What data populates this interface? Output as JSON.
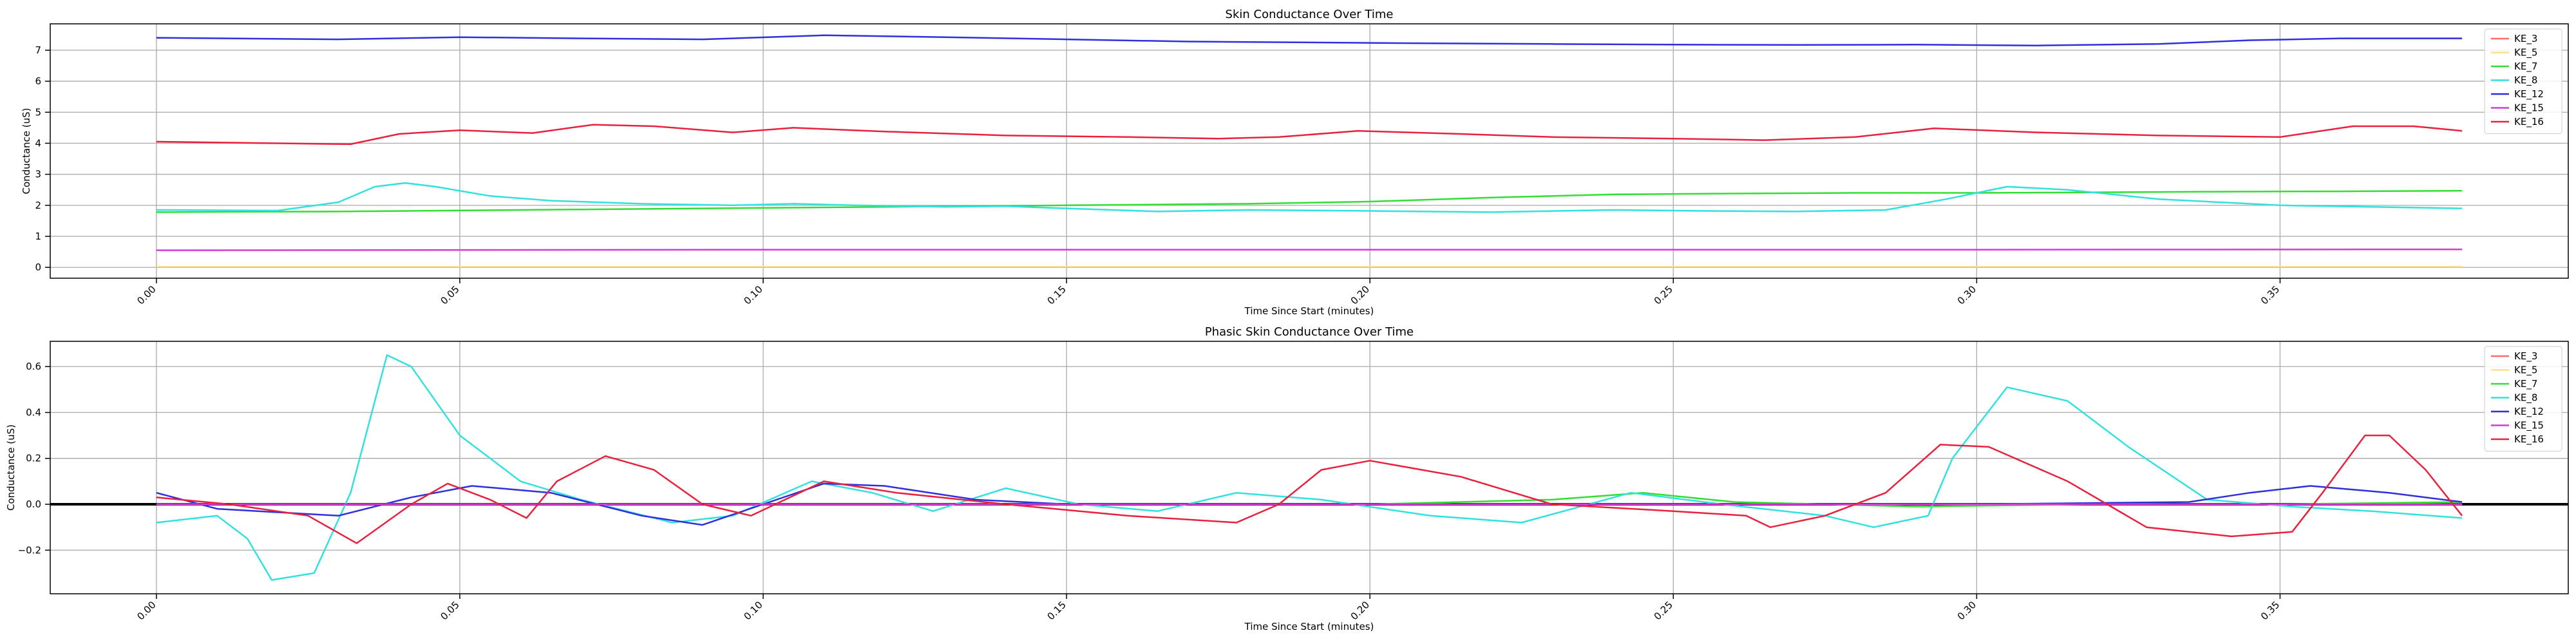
{
  "chart_data": [
    {
      "type": "line",
      "title": "Skin Conductance Over Time",
      "xlabel": "Time Since Start (minutes)",
      "ylabel": "Conductance (uS)",
      "xlim": [
        -0.0175,
        0.3975
      ],
      "ylim": [
        -0.35,
        7.85
      ],
      "xticks": [
        "0.00",
        "0.05",
        "0.10",
        "0.15",
        "0.20",
        "0.25",
        "0.30",
        "0.35"
      ],
      "xtick_values": [
        0.0,
        0.05,
        0.1,
        0.15,
        0.2,
        0.25,
        0.3,
        0.35
      ],
      "yticks": [
        "0",
        "1",
        "2",
        "3",
        "4",
        "5",
        "6",
        "7"
      ],
      "ytick_values": [
        0,
        1,
        2,
        3,
        4,
        5,
        6,
        7
      ],
      "grid": true,
      "legend": "top-right",
      "series": [
        {
          "name": "KE_3",
          "color": "#ff6b6b",
          "points": [
            [
              0.0,
              0.01
            ],
            [
              0.1,
              0.01
            ],
            [
              0.2,
              0.01
            ],
            [
              0.3,
              0.01
            ],
            [
              0.38,
              0.01
            ]
          ]
        },
        {
          "name": "KE_5",
          "color": "#ffe08a",
          "points": [
            [
              0.0,
              0.02
            ],
            [
              0.1,
              0.02
            ],
            [
              0.2,
              0.02
            ],
            [
              0.3,
              0.02
            ],
            [
              0.38,
              0.02
            ]
          ]
        },
        {
          "name": "KE_7",
          "color": "#33dd33",
          "points": [
            [
              0.0,
              1.78
            ],
            [
              0.03,
              1.8
            ],
            [
              0.06,
              1.85
            ],
            [
              0.09,
              1.9
            ],
            [
              0.12,
              1.95
            ],
            [
              0.15,
              2.0
            ],
            [
              0.18,
              2.05
            ],
            [
              0.2,
              2.12
            ],
            [
              0.22,
              2.25
            ],
            [
              0.24,
              2.35
            ],
            [
              0.26,
              2.38
            ],
            [
              0.28,
              2.4
            ],
            [
              0.3,
              2.4
            ],
            [
              0.32,
              2.42
            ],
            [
              0.34,
              2.44
            ],
            [
              0.36,
              2.45
            ],
            [
              0.38,
              2.47
            ]
          ]
        },
        {
          "name": "KE_8",
          "color": "#33e0e0",
          "points": [
            [
              0.0,
              1.85
            ],
            [
              0.02,
              1.83
            ],
            [
              0.03,
              2.1
            ],
            [
              0.036,
              2.6
            ],
            [
              0.041,
              2.72
            ],
            [
              0.046,
              2.6
            ],
            [
              0.055,
              2.3
            ],
            [
              0.065,
              2.15
            ],
            [
              0.08,
              2.05
            ],
            [
              0.095,
              2.0
            ],
            [
              0.105,
              2.05
            ],
            [
              0.115,
              2.0
            ],
            [
              0.13,
              1.95
            ],
            [
              0.14,
              1.97
            ],
            [
              0.15,
              1.9
            ],
            [
              0.165,
              1.8
            ],
            [
              0.18,
              1.85
            ],
            [
              0.2,
              1.82
            ],
            [
              0.22,
              1.78
            ],
            [
              0.24,
              1.85
            ],
            [
              0.255,
              1.82
            ],
            [
              0.27,
              1.8
            ],
            [
              0.285,
              1.85
            ],
            [
              0.295,
              2.2
            ],
            [
              0.305,
              2.6
            ],
            [
              0.315,
              2.5
            ],
            [
              0.33,
              2.2
            ],
            [
              0.35,
              2.0
            ],
            [
              0.365,
              1.95
            ],
            [
              0.38,
              1.9
            ]
          ]
        },
        {
          "name": "KE_12",
          "color": "#2f2fdd",
          "points": [
            [
              0.0,
              7.4
            ],
            [
              0.03,
              7.35
            ],
            [
              0.05,
              7.42
            ],
            [
              0.07,
              7.38
            ],
            [
              0.09,
              7.35
            ],
            [
              0.11,
              7.48
            ],
            [
              0.13,
              7.42
            ],
            [
              0.15,
              7.35
            ],
            [
              0.17,
              7.28
            ],
            [
              0.19,
              7.25
            ],
            [
              0.21,
              7.22
            ],
            [
              0.23,
              7.2
            ],
            [
              0.25,
              7.18
            ],
            [
              0.27,
              7.17
            ],
            [
              0.29,
              7.18
            ],
            [
              0.31,
              7.15
            ],
            [
              0.33,
              7.2
            ],
            [
              0.345,
              7.32
            ],
            [
              0.36,
              7.38
            ],
            [
              0.38,
              7.38
            ]
          ]
        },
        {
          "name": "KE_15",
          "color": "#d43cd4",
          "points": [
            [
              0.0,
              0.55
            ],
            [
              0.1,
              0.57
            ],
            [
              0.2,
              0.57
            ],
            [
              0.3,
              0.57
            ],
            [
              0.38,
              0.58
            ]
          ]
        },
        {
          "name": "KE_16",
          "color": "#e8213e",
          "points": [
            [
              0.0,
              4.05
            ],
            [
              0.02,
              4.0
            ],
            [
              0.032,
              3.97
            ],
            [
              0.04,
              4.3
            ],
            [
              0.05,
              4.42
            ],
            [
              0.062,
              4.33
            ],
            [
              0.072,
              4.6
            ],
            [
              0.082,
              4.55
            ],
            [
              0.095,
              4.35
            ],
            [
              0.105,
              4.5
            ],
            [
              0.12,
              4.38
            ],
            [
              0.14,
              4.25
            ],
            [
              0.16,
              4.2
            ],
            [
              0.175,
              4.15
            ],
            [
              0.185,
              4.2
            ],
            [
              0.198,
              4.4
            ],
            [
              0.215,
              4.3
            ],
            [
              0.23,
              4.2
            ],
            [
              0.25,
              4.15
            ],
            [
              0.265,
              4.1
            ],
            [
              0.28,
              4.2
            ],
            [
              0.293,
              4.48
            ],
            [
              0.31,
              4.35
            ],
            [
              0.33,
              4.25
            ],
            [
              0.35,
              4.2
            ],
            [
              0.362,
              4.55
            ],
            [
              0.372,
              4.55
            ],
            [
              0.38,
              4.4
            ]
          ]
        }
      ]
    },
    {
      "type": "line",
      "title": "Phasic Skin Conductance Over Time",
      "xlabel": "Time Since Start (minutes)",
      "ylabel": "Conductance (uS)",
      "xlim": [
        -0.0175,
        0.3975
      ],
      "ylim": [
        -0.39,
        0.71
      ],
      "xticks": [
        "0.00",
        "0.05",
        "0.10",
        "0.15",
        "0.20",
        "0.25",
        "0.30",
        "0.35"
      ],
      "xtick_values": [
        0.0,
        0.05,
        0.1,
        0.15,
        0.2,
        0.25,
        0.3,
        0.35
      ],
      "yticks": [
        "−0.2",
        "0.0",
        "0.2",
        "0.4",
        "0.6"
      ],
      "ytick_values": [
        -0.2,
        0.0,
        0.2,
        0.4,
        0.6
      ],
      "grid": true,
      "legend": "top-right",
      "zero_line": true,
      "series": [
        {
          "name": "KE_3",
          "color": "#ff6b6b",
          "points": [
            [
              0.0,
              0.0
            ],
            [
              0.38,
              0.0
            ]
          ]
        },
        {
          "name": "KE_5",
          "color": "#ffe08a",
          "points": [
            [
              0.0,
              0.0
            ],
            [
              0.38,
              0.0
            ]
          ]
        },
        {
          "name": "KE_7",
          "color": "#33dd33",
          "points": [
            [
              0.0,
              0.0
            ],
            [
              0.1,
              0.0
            ],
            [
              0.2,
              0.0
            ],
            [
              0.23,
              0.02
            ],
            [
              0.245,
              0.05
            ],
            [
              0.26,
              0.01
            ],
            [
              0.29,
              -0.01
            ],
            [
              0.32,
              0.0
            ],
            [
              0.35,
              0.0
            ],
            [
              0.38,
              0.01
            ]
          ]
        },
        {
          "name": "KE_8",
          "color": "#33e0e0",
          "points": [
            [
              0.0,
              -0.08
            ],
            [
              0.01,
              -0.05
            ],
            [
              0.015,
              -0.15
            ],
            [
              0.019,
              -0.33
            ],
            [
              0.026,
              -0.3
            ],
            [
              0.032,
              0.05
            ],
            [
              0.038,
              0.65
            ],
            [
              0.042,
              0.6
            ],
            [
              0.05,
              0.3
            ],
            [
              0.06,
              0.1
            ],
            [
              0.07,
              0.02
            ],
            [
              0.085,
              -0.08
            ],
            [
              0.095,
              -0.05
            ],
            [
              0.108,
              0.1
            ],
            [
              0.118,
              0.05
            ],
            [
              0.128,
              -0.03
            ],
            [
              0.14,
              0.07
            ],
            [
              0.152,
              0.0
            ],
            [
              0.165,
              -0.03
            ],
            [
              0.178,
              0.05
            ],
            [
              0.192,
              0.02
            ],
            [
              0.21,
              -0.05
            ],
            [
              0.225,
              -0.08
            ],
            [
              0.243,
              0.05
            ],
            [
              0.258,
              0.0
            ],
            [
              0.275,
              -0.05
            ],
            [
              0.283,
              -0.1
            ],
            [
              0.292,
              -0.05
            ],
            [
              0.296,
              0.2
            ],
            [
              0.305,
              0.51
            ],
            [
              0.315,
              0.45
            ],
            [
              0.325,
              0.25
            ],
            [
              0.338,
              0.02
            ],
            [
              0.352,
              -0.01
            ],
            [
              0.365,
              -0.03
            ],
            [
              0.38,
              -0.06
            ]
          ]
        },
        {
          "name": "KE_12",
          "color": "#2f2fdd",
          "points": [
            [
              0.0,
              0.05
            ],
            [
              0.01,
              -0.02
            ],
            [
              0.03,
              -0.05
            ],
            [
              0.042,
              0.03
            ],
            [
              0.052,
              0.08
            ],
            [
              0.065,
              0.05
            ],
            [
              0.08,
              -0.05
            ],
            [
              0.09,
              -0.09
            ],
            [
              0.1,
              0.0
            ],
            [
              0.11,
              0.09
            ],
            [
              0.12,
              0.08
            ],
            [
              0.135,
              0.02
            ],
            [
              0.15,
              0.0
            ],
            [
              0.2,
              0.0
            ],
            [
              0.25,
              0.0
            ],
            [
              0.3,
              0.0
            ],
            [
              0.335,
              0.01
            ],
            [
              0.345,
              0.05
            ],
            [
              0.355,
              0.08
            ],
            [
              0.368,
              0.05
            ],
            [
              0.38,
              0.01
            ]
          ]
        },
        {
          "name": "KE_15",
          "color": "#d43cd4",
          "points": [
            [
              0.0,
              0.0
            ],
            [
              0.38,
              0.0
            ]
          ]
        },
        {
          "name": "KE_16",
          "color": "#e8213e",
          "points": [
            [
              0.0,
              0.03
            ],
            [
              0.012,
              0.0
            ],
            [
              0.025,
              -0.05
            ],
            [
              0.033,
              -0.17
            ],
            [
              0.042,
              0.0
            ],
            [
              0.048,
              0.09
            ],
            [
              0.055,
              0.02
            ],
            [
              0.061,
              -0.06
            ],
            [
              0.066,
              0.1
            ],
            [
              0.074,
              0.21
            ],
            [
              0.082,
              0.15
            ],
            [
              0.09,
              0.0
            ],
            [
              0.098,
              -0.05
            ],
            [
              0.11,
              0.1
            ],
            [
              0.122,
              0.05
            ],
            [
              0.14,
              0.0
            ],
            [
              0.16,
              -0.05
            ],
            [
              0.178,
              -0.08
            ],
            [
              0.185,
              0.0
            ],
            [
              0.192,
              0.15
            ],
            [
              0.2,
              0.19
            ],
            [
              0.215,
              0.12
            ],
            [
              0.23,
              0.0
            ],
            [
              0.25,
              -0.03
            ],
            [
              0.262,
              -0.05
            ],
            [
              0.266,
              -0.1
            ],
            [
              0.275,
              -0.05
            ],
            [
              0.285,
              0.05
            ],
            [
              0.294,
              0.26
            ],
            [
              0.302,
              0.25
            ],
            [
              0.315,
              0.1
            ],
            [
              0.328,
              -0.1
            ],
            [
              0.342,
              -0.14
            ],
            [
              0.352,
              -0.12
            ],
            [
              0.357,
              0.05
            ],
            [
              0.364,
              0.3
            ],
            [
              0.368,
              0.3
            ],
            [
              0.374,
              0.15
            ],
            [
              0.38,
              -0.05
            ]
          ]
        }
      ]
    }
  ]
}
